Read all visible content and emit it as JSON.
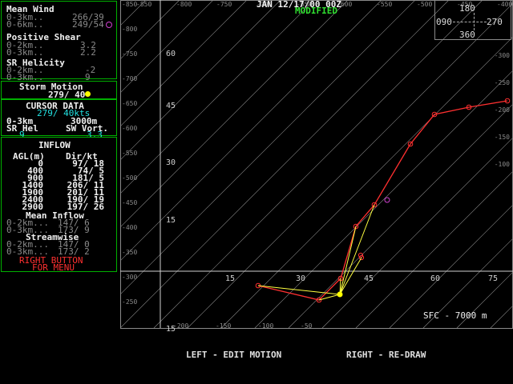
{
  "header": {
    "date_label": "JAN 12/17/00 00Z",
    "status": "MODIFIED"
  },
  "mean_wind": {
    "title": "Mean Wind",
    "rows": [
      {
        "label": "0-3km..",
        "value": "266/39"
      },
      {
        "label": "0-6km..",
        "value": "249/54"
      }
    ]
  },
  "positive_shear": {
    "title": "Positive Shear",
    "rows": [
      {
        "label": "0-2km..",
        "value": "3.2"
      },
      {
        "label": "0-3km..",
        "value": "2.2"
      }
    ]
  },
  "sr_helicity": {
    "title": "SR Helicity",
    "rows": [
      {
        "label": "0-2km..",
        "value": "-2"
      },
      {
        "label": "0-3km..",
        "value": "9"
      }
    ]
  },
  "storm_motion": {
    "title": "Storm Motion",
    "value": "279/ 40"
  },
  "cursor_data": {
    "title": "CURSOR DATA",
    "value": "279/ 40kts",
    "layer_label": "0-3km",
    "layer_value": "3000m",
    "srh_label": "SR Hel",
    "srh_value": "9",
    "vort_label": "SW Vort.",
    "vort_value": "3.3"
  },
  "inflow": {
    "title": "INFLOW",
    "col_agl": "AGL(m)",
    "col_dir": "Dir/kt",
    "rows": [
      {
        "agl": "0",
        "dir": "97/ 18"
      },
      {
        "agl": "400",
        "dir": "74/ 5"
      },
      {
        "agl": "900",
        "dir": "181/ 5"
      },
      {
        "agl": "1400",
        "dir": "206/ 11"
      },
      {
        "agl": "1900",
        "dir": "201/ 11"
      },
      {
        "agl": "2400",
        "dir": "190/ 19"
      },
      {
        "agl": "2900",
        "dir": "197/ 26"
      }
    ],
    "mean_title": "Mean Inflow",
    "mean_rows": [
      {
        "label": "0-2km...",
        "value": "147/ 6"
      },
      {
        "label": "0-3km...",
        "value": "173/ 9"
      }
    ],
    "stream_title": "Streamwise",
    "stream_rows": [
      {
        "label": "0-2km...",
        "value": "147/ 0"
      },
      {
        "label": "0-3km...",
        "value": "173/ 2"
      }
    ],
    "menu_line1": "RIGHT BUTTON",
    "menu_line2": "FOR MENU"
  },
  "compass": {
    "n": "180",
    "e": "270",
    "w": "090",
    "s": "360"
  },
  "hodograph": {
    "x_ticks": [
      "15",
      "30",
      "45",
      "60",
      "75"
    ],
    "y_ticks": [
      "60",
      "45",
      "30",
      "15"
    ],
    "bottom_tick": "15",
    "top_labels": [
      "-850",
      "-800",
      "-750",
      "-700",
      "-650",
      "-600",
      "-550",
      "-500",
      "-450",
      "-400",
      "-350",
      "-300"
    ],
    "left_labels": [
      "-850",
      "-800",
      "-750",
      "-700",
      "-650",
      "-600",
      "-550",
      "-500",
      "-450",
      "-400",
      "-350",
      "-300",
      "-250"
    ],
    "bottom_labels": [
      "-200",
      "-150",
      "-100",
      "-50"
    ],
    "right_labels": [
      "-300",
      "-250",
      "-200",
      "-150",
      "-100"
    ],
    "layer_label": "SFC - 7000 m",
    "colors": {
      "red": "#ff3030",
      "yellow": "#ffff40",
      "grid": "#8a8a8a",
      "magenta": "#d040d0"
    }
  },
  "footer": {
    "left": "LEFT - EDIT MOTION",
    "right": "RIGHT - RE-DRAW"
  }
}
